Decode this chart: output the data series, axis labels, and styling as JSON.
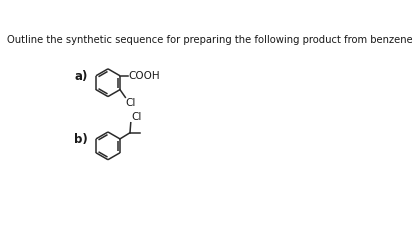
{
  "title": "Outline the synthetic sequence for preparing the following product from benzene.",
  "title_fontsize": 7.2,
  "bg_color": "#ffffff",
  "label_a": "a)",
  "label_b": "b)",
  "label_fontsize": 8.5,
  "cooh_label": "COOH",
  "cl_label_a": "Cl",
  "cl_label_b": "Cl",
  "text_color": "#1a1a1a",
  "struct_color": "#2a2a2a",
  "line_width": 1.1
}
